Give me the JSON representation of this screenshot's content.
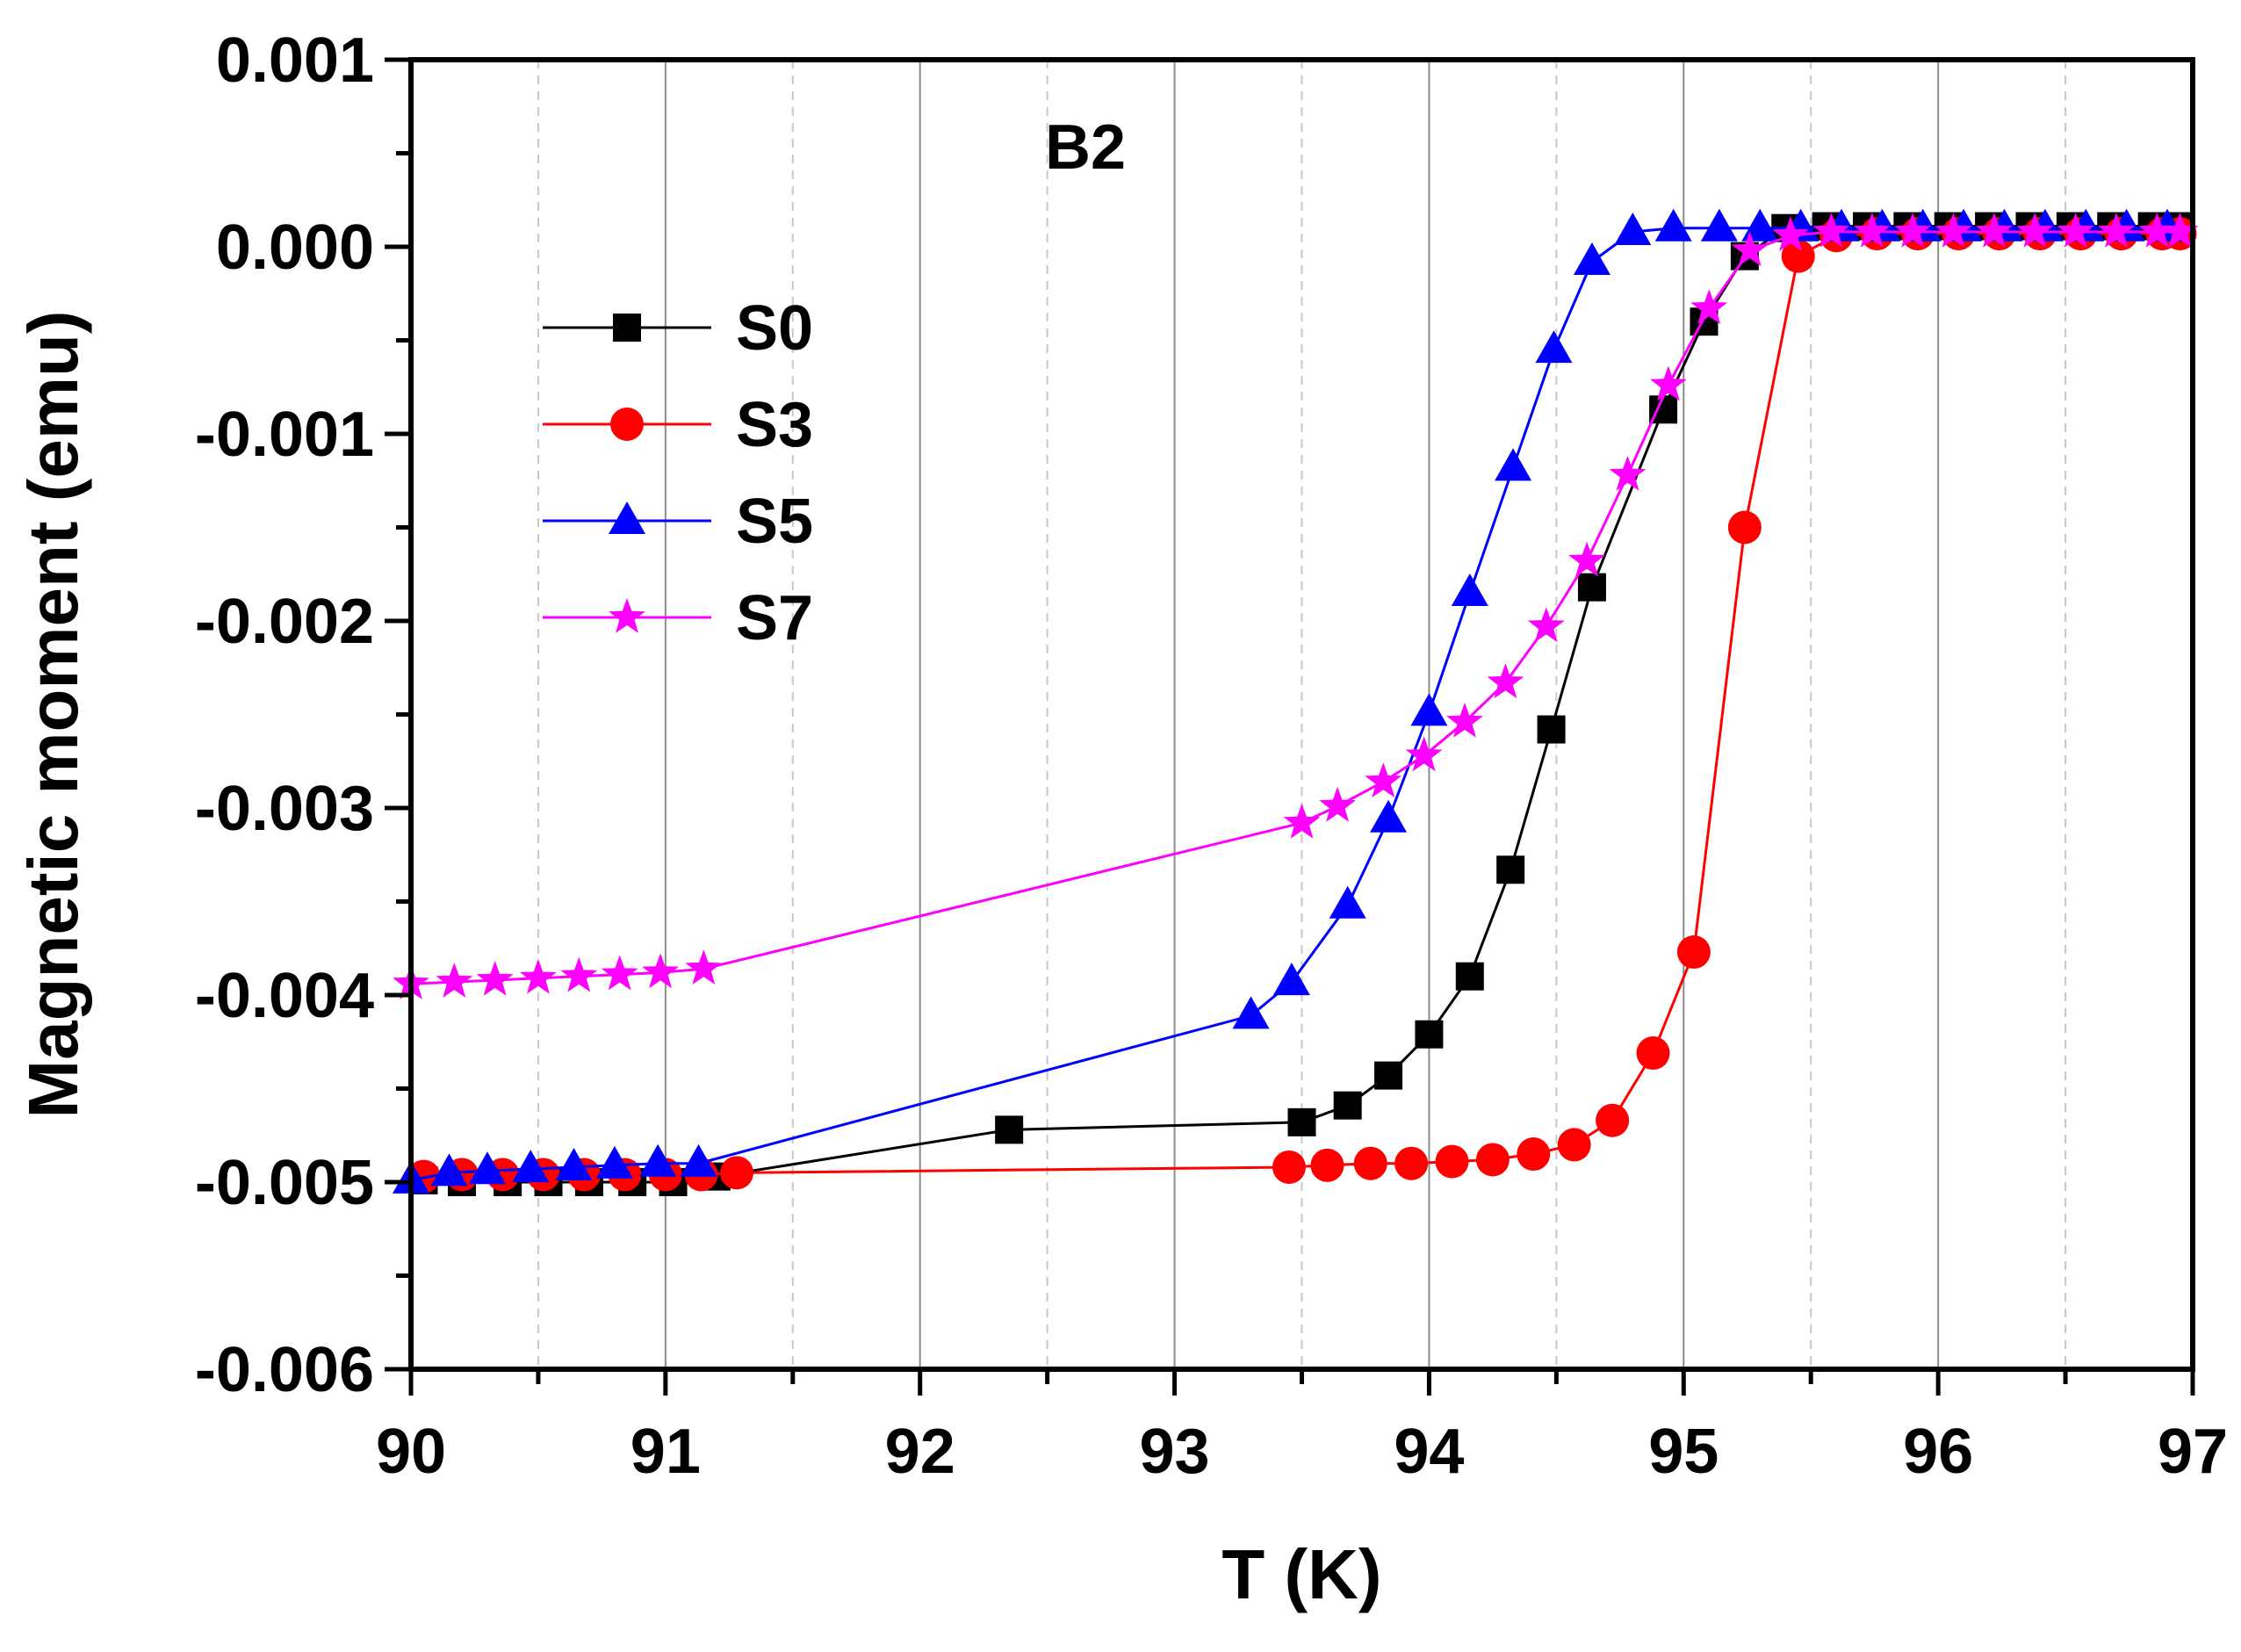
{
  "chart_data": {
    "type": "line",
    "title": "",
    "annotation": "B2",
    "xlabel": "T (K)",
    "ylabel": "Magnetic moment (emu)",
    "xlim": [
      90,
      97
    ],
    "ylim": [
      -0.006,
      0.001
    ],
    "x_ticks": [
      90,
      91,
      92,
      93,
      94,
      95,
      96,
      97
    ],
    "x_tick_labels": [
      "90",
      "91",
      "92",
      "93",
      "94",
      "95",
      "96",
      "97"
    ],
    "y_ticks": [
      0.001,
      0.0,
      -0.001,
      -0.002,
      -0.003,
      -0.004,
      -0.005,
      -0.006
    ],
    "y_tick_labels": [
      "0.001",
      "0.000",
      "-0.001",
      "-0.002",
      "-0.003",
      "-0.004",
      "-0.005",
      "-0.006"
    ],
    "grid": "vertical",
    "legend_position": "upper-left",
    "series": [
      {
        "name": "S0",
        "color": "#000000",
        "marker": "square",
        "x": [
          90.05,
          90.2,
          90.38,
          90.54,
          90.7,
          90.87,
          91.03,
          91.2,
          92.35,
          93.5,
          93.68,
          93.84,
          94.0,
          94.16,
          94.32,
          94.48,
          94.64,
          94.92,
          95.08,
          95.24,
          95.4,
          95.56,
          95.72,
          95.88,
          96.04,
          96.2,
          96.36,
          96.52,
          96.68,
          96.84,
          96.95
        ],
        "y": [
          -0.00499,
          -0.005,
          -0.005,
          -0.005,
          -0.005,
          -0.005,
          -0.005,
          -0.00497,
          -0.00472,
          -0.00468,
          -0.00459,
          -0.00443,
          -0.00421,
          -0.0039,
          -0.00333,
          -0.00258,
          -0.00182,
          -0.00087,
          -0.0004,
          -5e-05,
          0.0001,
          0.00011,
          0.00011,
          0.00011,
          0.00011,
          0.00011,
          0.00011,
          0.00011,
          0.00011,
          0.00011,
          0.00011
        ]
      },
      {
        "name": "S3",
        "color": "#ff0000",
        "marker": "circle",
        "x": [
          90.05,
          90.2,
          90.36,
          90.52,
          90.68,
          90.84,
          91.0,
          91.14,
          91.28,
          93.45,
          93.6,
          93.77,
          93.93,
          94.09,
          94.25,
          94.41,
          94.57,
          94.72,
          94.88,
          95.04,
          95.24,
          95.45,
          95.6,
          95.76,
          95.92,
          96.08,
          96.24,
          96.4,
          96.56,
          96.72,
          96.88,
          96.95
        ],
        "y": [
          -0.00497,
          -0.00496,
          -0.00496,
          -0.00496,
          -0.00496,
          -0.00496,
          -0.00496,
          -0.00496,
          -0.00495,
          -0.00492,
          -0.00491,
          -0.0049,
          -0.0049,
          -0.00489,
          -0.00488,
          -0.00485,
          -0.0048,
          -0.00467,
          -0.00431,
          -0.00377,
          -0.0015,
          -5e-05,
          6e-05,
          7e-05,
          7e-05,
          7e-05,
          7e-05,
          7e-05,
          7e-05,
          7e-05,
          7e-05,
          7e-05
        ]
      },
      {
        "name": "S5",
        "color": "#0000ff",
        "marker": "triangle",
        "x": [
          90.0,
          90.15,
          90.3,
          90.47,
          90.64,
          90.8,
          90.97,
          91.13,
          93.3,
          93.46,
          93.68,
          93.84,
          94.0,
          94.16,
          94.33,
          94.49,
          94.64,
          94.8,
          94.96,
          95.14,
          95.3,
          95.46,
          95.62,
          95.78,
          95.94,
          96.1,
          96.26,
          96.42,
          96.58,
          96.74,
          96.9
        ],
        "y": [
          -0.00499,
          -0.00495,
          -0.00494,
          -0.00493,
          -0.00492,
          -0.00491,
          -0.0049,
          -0.0049,
          -0.00411,
          -0.00393,
          -0.00352,
          -0.00306,
          -0.00249,
          -0.00185,
          -0.00118,
          -0.00055,
          -8e-05,
          8e-05,
          0.0001,
          0.0001,
          0.0001,
          0.0001,
          0.0001,
          0.0001,
          0.0001,
          0.0001,
          0.0001,
          0.0001,
          0.0001,
          0.0001,
          0.0001
        ]
      },
      {
        "name": "S7",
        "color": "#ff00ff",
        "marker": "star",
        "x": [
          90.0,
          90.17,
          90.33,
          90.5,
          90.66,
          90.82,
          90.98,
          91.15,
          93.5,
          93.64,
          93.82,
          93.98,
          94.14,
          94.3,
          94.46,
          94.62,
          94.78,
          94.94,
          95.1,
          95.26,
          95.42,
          95.58,
          95.74,
          95.9,
          96.06,
          96.22,
          96.38,
          96.54,
          96.7,
          96.86,
          96.95
        ],
        "y": [
          -0.00394,
          -0.00393,
          -0.00392,
          -0.00391,
          -0.0039,
          -0.00389,
          -0.00388,
          -0.00386,
          -0.00308,
          -0.00299,
          -0.00286,
          -0.00272,
          -0.00254,
          -0.00233,
          -0.00203,
          -0.00168,
          -0.00122,
          -0.00074,
          -0.00033,
          -2e-05,
          6e-05,
          8e-05,
          8e-05,
          8e-05,
          8e-05,
          8e-05,
          8e-05,
          8e-05,
          8e-05,
          8e-05,
          8e-05
        ]
      }
    ]
  }
}
